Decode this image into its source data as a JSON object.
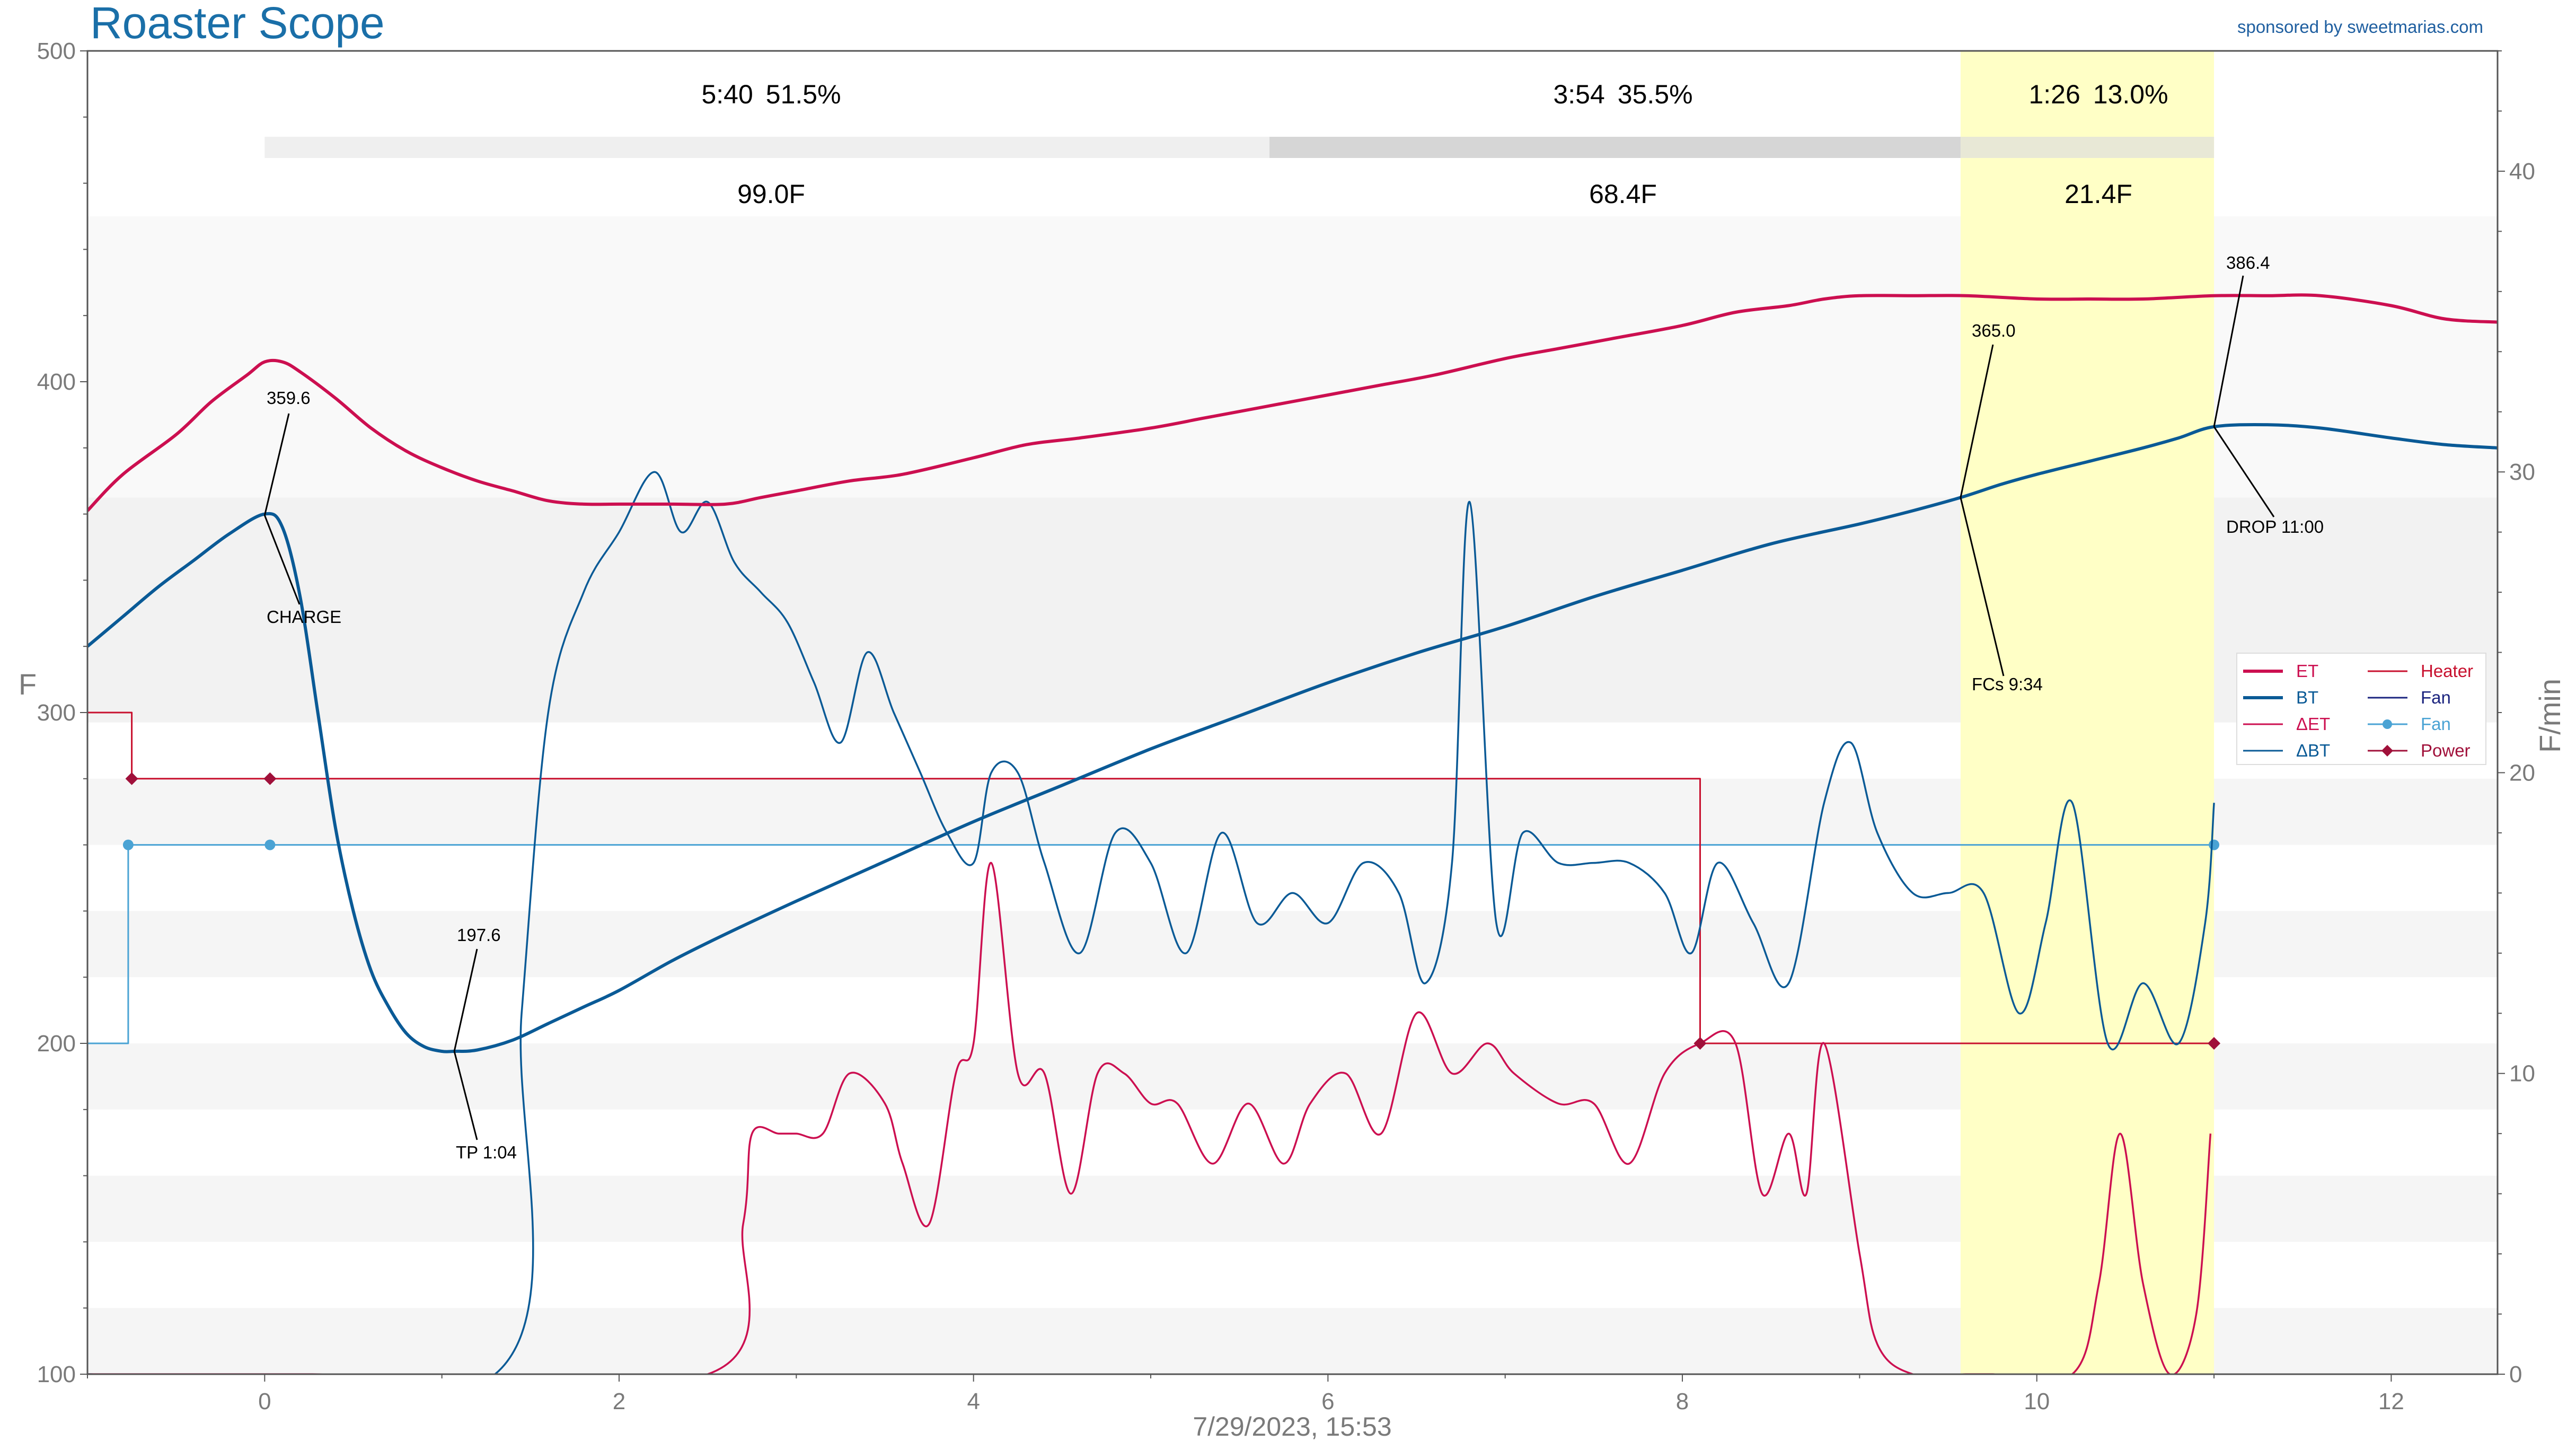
{
  "title": "Roaster Scope",
  "sponsor": "sponsored by sweetmarias.com",
  "datetime_label": "7/29/2023, 15:53",
  "colors": {
    "title": "#1a6fa8",
    "sponsor": "#1f5fa0",
    "et": "#cc0f50",
    "bt": "#0a5a96",
    "fan": "#4aa3d4",
    "heater": "#c8102e",
    "power": "#a0103a",
    "fc_highlight": "#ffffc6",
    "axis_text": "#7a7a7a"
  },
  "phases": [
    {
      "time": "5:40",
      "pct": "51.5%",
      "delta": "99.0F"
    },
    {
      "time": "3:54",
      "pct": "35.5%",
      "delta": "68.4F"
    },
    {
      "time": "1:26",
      "pct": "13.0%",
      "delta": "21.4F"
    }
  ],
  "annotations": {
    "charge_temp": "359.6",
    "charge_label": "CHARGE",
    "tp_temp": "197.6",
    "tp_label": "TP 1:04",
    "fcs_temp": "365.0",
    "fcs_label": "FCs 9:34",
    "drop_temp": "386.4",
    "drop_label": "DROP 11:00"
  },
  "legend": [
    {
      "label": "ET",
      "style": "line-thick",
      "color": "#cc0f50"
    },
    {
      "label": "BT",
      "style": "line-thick",
      "color": "#0a5a96"
    },
    {
      "label": "ΔET",
      "style": "line",
      "color": "#cc0f50"
    },
    {
      "label": "ΔBT",
      "style": "line",
      "color": "#0a5a96"
    },
    {
      "label": "Heater",
      "style": "line",
      "color": "#c8102e"
    },
    {
      "label": "Fan",
      "style": "line",
      "color": "#1a237e"
    },
    {
      "label": "Fan",
      "style": "dot",
      "color": "#4aa3d4"
    },
    {
      "label": "Power",
      "style": "diamond",
      "color": "#a0103a"
    }
  ],
  "chart_data": {
    "type": "line",
    "title": "Roaster Scope",
    "xlabel": "7/29/2023, 15:53",
    "ylabel": "F",
    "y2label": "F/min",
    "xlim": [
      -1,
      12.6
    ],
    "ylim": [
      100,
      500
    ],
    "y2lim": [
      0,
      44
    ],
    "xticks": [
      0,
      2,
      4,
      6,
      8,
      10,
      12
    ],
    "yticks": [
      100,
      200,
      300,
      400,
      500
    ],
    "y2ticks": [
      0,
      10,
      20,
      30,
      40
    ],
    "grid": false,
    "legend_position": "right",
    "events": {
      "charge": 0,
      "tp": 1.07,
      "fcs": 9.57,
      "drop": 11.0
    },
    "series": [
      {
        "name": "ET",
        "axis": "left",
        "x": [
          -1,
          -0.8,
          -0.5,
          -0.3,
          -0.1,
          0,
          0.1,
          0.2,
          0.4,
          0.6,
          0.8,
          1.0,
          1.2,
          1.4,
          1.6,
          1.8,
          2.0,
          2.3,
          2.6,
          2.8,
          3.0,
          3.3,
          3.6,
          4.0,
          4.3,
          4.6,
          5.0,
          5.3,
          5.6,
          6.0,
          6.3,
          6.6,
          7.0,
          7.3,
          7.6,
          8.0,
          8.3,
          8.6,
          8.8,
          9.0,
          9.3,
          9.6,
          10.0,
          10.3,
          10.6,
          11.0,
          11.3,
          11.6,
          12.0,
          12.3,
          12.6
        ],
        "y": [
          361,
          372,
          384,
          394,
          402,
          406,
          406,
          403,
          395,
          386,
          379,
          374,
          370,
          367,
          364,
          363,
          363,
          363,
          363,
          365,
          367,
          370,
          372,
          377,
          381,
          383,
          386,
          389,
          392,
          396,
          399,
          402,
          407,
          410,
          413,
          417,
          421,
          423,
          425,
          426,
          426,
          426,
          425,
          425,
          425,
          426,
          426,
          426,
          423,
          419,
          418
        ]
      },
      {
        "name": "BT",
        "axis": "left",
        "x": [
          -1,
          -0.8,
          -0.6,
          -0.4,
          -0.2,
          0,
          0.1,
          0.2,
          0.3,
          0.4,
          0.5,
          0.6,
          0.7,
          0.8,
          0.9,
          1.0,
          1.07,
          1.2,
          1.4,
          1.6,
          1.8,
          2.0,
          2.3,
          2.6,
          3.0,
          3.5,
          4.0,
          4.5,
          5.0,
          5.5,
          6.0,
          6.5,
          7.0,
          7.5,
          8.0,
          8.5,
          9.0,
          9.3,
          9.57,
          9.8,
          10.0,
          10.3,
          10.6,
          10.8,
          11.0,
          11.3,
          11.6,
          12.0,
          12.3,
          12.6
        ],
        "y": [
          320,
          329,
          338,
          346,
          354,
          360,
          356,
          335,
          300,
          265,
          240,
          222,
          211,
          203,
          199,
          197.6,
          197.6,
          198,
          201,
          206,
          211,
          216,
          225,
          233,
          243,
          255,
          267,
          278,
          289,
          299,
          309,
          318,
          326,
          335,
          343,
          351,
          357,
          361,
          365,
          369,
          372,
          376,
          380,
          383,
          386.4,
          387,
          386,
          383,
          381,
          380
        ]
      },
      {
        "name": "ΔET",
        "axis": "right",
        "x": [
          -1,
          0.2,
          0.27,
          2.5,
          2.7,
          2.75,
          2.9,
          3.0,
          3.15,
          3.3,
          3.5,
          3.6,
          3.75,
          3.9,
          4.0,
          4.1,
          4.25,
          4.4,
          4.55,
          4.7,
          4.85,
          5.0,
          5.15,
          5.35,
          5.55,
          5.75,
          5.9,
          6.1,
          6.3,
          6.5,
          6.7,
          6.9,
          7.05,
          7.3,
          7.5,
          7.7,
          7.9,
          8.1,
          8.3,
          8.45,
          8.6,
          8.7,
          8.8,
          9.0,
          9.1,
          9.3,
          9.6,
          9.75,
          10.2,
          10.35,
          10.47,
          10.6,
          10.75,
          10.9,
          10.98
        ],
        "y": [
          0,
          0,
          0,
          0,
          5,
          8,
          8,
          8,
          8,
          10,
          9,
          7,
          5,
          10,
          11,
          17,
          10,
          10,
          6,
          10,
          10,
          9,
          9,
          7,
          9,
          7,
          9,
          10,
          8,
          12,
          10,
          11,
          10,
          9,
          9,
          7,
          10,
          11,
          11,
          6,
          8,
          6,
          11,
          4,
          1,
          0,
          0,
          0,
          0,
          3,
          8,
          3,
          0,
          2,
          8
        ]
      },
      {
        "name": "ΔBT",
        "axis": "right",
        "x": [
          -1,
          1.3,
          1.45,
          1.6,
          1.8,
          2.0,
          2.2,
          2.35,
          2.5,
          2.65,
          2.8,
          2.95,
          3.1,
          3.25,
          3.4,
          3.55,
          3.7,
          3.85,
          4.0,
          4.1,
          4.25,
          4.4,
          4.6,
          4.8,
          5.0,
          5.2,
          5.4,
          5.6,
          5.8,
          6.0,
          6.2,
          6.4,
          6.55,
          6.7,
          6.8,
          6.95,
          7.1,
          7.3,
          7.5,
          7.7,
          7.9,
          8.05,
          8.2,
          8.4,
          8.6,
          8.8,
          8.95,
          9.1,
          9.3,
          9.5,
          9.7,
          9.9,
          10.05,
          10.2,
          10.4,
          10.6,
          10.8,
          10.95,
          11.0
        ],
        "y": [
          0,
          0,
          12,
          22,
          26,
          28,
          30,
          28,
          29,
          27,
          26,
          25,
          23,
          21,
          24,
          22,
          20,
          18,
          17,
          20,
          20,
          17,
          14,
          18,
          17,
          14,
          18,
          15,
          16,
          15,
          17,
          16,
          13,
          17,
          29,
          15,
          18,
          17,
          17,
          17,
          16,
          14,
          17,
          15,
          13,
          19,
          21,
          18,
          16,
          16,
          16,
          12,
          15,
          19,
          11,
          13,
          11,
          15,
          19
        ]
      },
      {
        "name": "Heater",
        "axis": "left",
        "x": [
          -1,
          -0.75,
          -0.75,
          8.1,
          8.1,
          11.0
        ],
        "y": [
          300,
          300,
          280,
          280,
          200,
          200
        ]
      },
      {
        "name": "Power",
        "axis": "left",
        "x": [
          -0.75,
          0.03,
          8.1,
          11.0
        ],
        "y": [
          280,
          280,
          200,
          200
        ]
      },
      {
        "name": "Fan",
        "axis": "left",
        "x": [
          -1,
          -0.77,
          -0.77,
          11.0
        ],
        "y": [
          200,
          200,
          260,
          260
        ]
      }
    ]
  }
}
